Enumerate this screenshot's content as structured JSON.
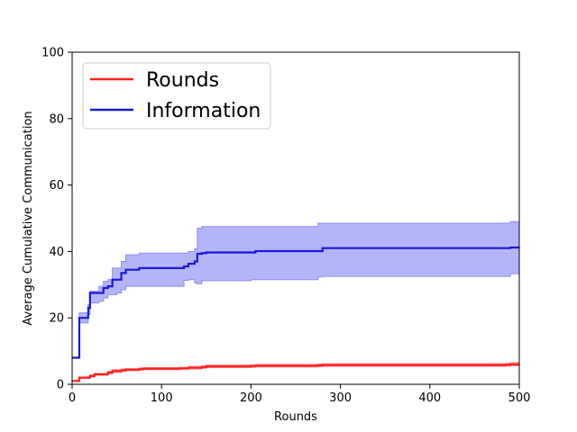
{
  "chart_data": {
    "type": "line",
    "title": "",
    "xlabel": "Rounds",
    "ylabel": "Average Cumulative Communication",
    "xlim": [
      0,
      500
    ],
    "ylim": [
      0,
      100
    ],
    "xticks": [
      0,
      100,
      200,
      300,
      400,
      500
    ],
    "yticks": [
      0,
      20,
      40,
      60,
      80,
      100
    ],
    "grid": false,
    "legend_position": "upper-left",
    "series": [
      {
        "name": "Rounds",
        "color": "#ff2020",
        "band_color": "#ff8080",
        "x": [
          0,
          7,
          8,
          18,
          20,
          25,
          28,
          40,
          45,
          55,
          60,
          75,
          80,
          120,
          130,
          145,
          150,
          200,
          205,
          275,
          280,
          485,
          490,
          500
        ],
        "y": [
          1.0,
          1.0,
          2.0,
          2.0,
          2.5,
          3.0,
          3.0,
          3.5,
          4.0,
          4.2,
          4.4,
          4.6,
          4.7,
          4.8,
          5.0,
          5.2,
          5.4,
          5.5,
          5.6,
          5.7,
          5.8,
          5.9,
          6.0,
          6.0
        ],
        "lower": [
          1.0,
          1.0,
          1.8,
          1.8,
          2.2,
          2.7,
          2.7,
          3.2,
          3.6,
          3.9,
          4.1,
          4.3,
          4.4,
          4.5,
          4.6,
          4.8,
          5.0,
          5.1,
          5.2,
          5.3,
          5.4,
          5.5,
          5.6,
          5.6
        ],
        "upper": [
          1.0,
          1.0,
          2.2,
          2.2,
          2.8,
          3.3,
          3.3,
          3.9,
          4.4,
          4.6,
          4.7,
          4.9,
          5.0,
          5.1,
          5.4,
          5.6,
          5.8,
          5.9,
          6.0,
          6.1,
          6.2,
          6.3,
          6.5,
          6.5
        ]
      },
      {
        "name": "Information",
        "color": "#1a1adc",
        "band_color": "#8c8cf5",
        "x": [
          0,
          7,
          8,
          15,
          18,
          20,
          30,
          35,
          40,
          45,
          50,
          55,
          60,
          75,
          125,
          130,
          137,
          140,
          145,
          150,
          200,
          205,
          275,
          280,
          490,
          500
        ],
        "y": [
          8,
          8,
          20,
          20,
          23,
          27.5,
          27.5,
          29,
          29.5,
          31.5,
          31.5,
          33.5,
          34.5,
          35,
          35.5,
          36.3,
          37,
          39.3,
          39.5,
          39.7,
          39.7,
          40.1,
          40.1,
          41,
          41.2,
          41.2
        ],
        "lower": [
          8,
          8,
          18.5,
          18.5,
          21,
          24.5,
          25,
          26,
          27,
          27,
          27.5,
          28.5,
          29.5,
          29.5,
          31.3,
          31.5,
          30.5,
          30.3,
          31.2,
          31.2,
          31.5,
          31.5,
          32.3,
          32.5,
          33.3,
          33.3
        ],
        "upper": [
          8,
          8,
          21.5,
          21.5,
          24,
          28,
          29.5,
          31,
          31.5,
          35,
          35,
          37,
          39,
          39.5,
          39.5,
          40,
          40.8,
          47,
          47.5,
          47.5,
          47.5,
          47.5,
          48.5,
          48.5,
          49,
          49
        ]
      }
    ]
  }
}
